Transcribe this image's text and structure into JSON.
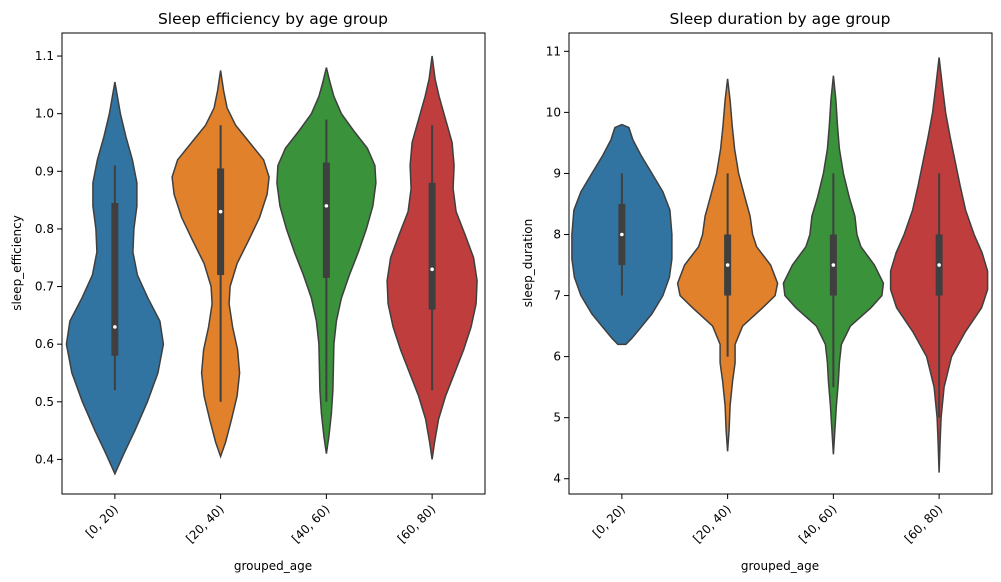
{
  "chart_data": [
    {
      "type": "violin",
      "title": "Sleep efficiency by age group",
      "xlabel": "grouped_age",
      "ylabel": "sleep_efficiency",
      "ylim": [
        0.34,
        1.14
      ],
      "yticks": [
        0.4,
        0.5,
        0.6,
        0.7,
        0.8,
        0.9,
        1.0,
        1.1
      ],
      "ytick_labels": [
        "0.4",
        "0.5",
        "0.6",
        "0.7",
        "0.8",
        "0.9",
        "1.0",
        "1.1"
      ],
      "categories": [
        "[0, 20)",
        "[20, 40)",
        "[40, 60)",
        "[60, 80)"
      ],
      "colors": [
        "#3274a1",
        "#e1812c",
        "#3a923a",
        "#c03d3e"
      ],
      "series": [
        {
          "category": "[0, 20)",
          "min": 0.52,
          "q1": 0.58,
          "median": 0.63,
          "q3": 0.845,
          "max": 0.91,
          "kde_lo": 0.375,
          "kde_hi": 1.055,
          "density": [
            [
              0.375,
              0.0
            ],
            [
              0.41,
              0.18
            ],
            [
              0.45,
              0.4
            ],
            [
              0.5,
              0.65
            ],
            [
              0.55,
              0.86
            ],
            [
              0.6,
              0.97
            ],
            [
              0.64,
              0.9
            ],
            [
              0.68,
              0.66
            ],
            [
              0.72,
              0.45
            ],
            [
              0.76,
              0.36
            ],
            [
              0.8,
              0.38
            ],
            [
              0.84,
              0.44
            ],
            [
              0.88,
              0.44
            ],
            [
              0.92,
              0.35
            ],
            [
              0.96,
              0.22
            ],
            [
              1.0,
              0.11
            ],
            [
              1.03,
              0.05
            ],
            [
              1.055,
              0.0
            ]
          ]
        },
        {
          "category": "[20, 40)",
          "min": 0.5,
          "q1": 0.72,
          "median": 0.83,
          "q3": 0.905,
          "max": 0.98,
          "kde_lo": 0.405,
          "kde_hi": 1.075,
          "density": [
            [
              0.405,
              0.0
            ],
            [
              0.43,
              0.1
            ],
            [
              0.47,
              0.22
            ],
            [
              0.51,
              0.33
            ],
            [
              0.55,
              0.38
            ],
            [
              0.59,
              0.34
            ],
            [
              0.63,
              0.24
            ],
            [
              0.67,
              0.17
            ],
            [
              0.7,
              0.19
            ],
            [
              0.74,
              0.33
            ],
            [
              0.78,
              0.56
            ],
            [
              0.82,
              0.78
            ],
            [
              0.86,
              0.93
            ],
            [
              0.89,
              0.97
            ],
            [
              0.92,
              0.86
            ],
            [
              0.95,
              0.58
            ],
            [
              0.98,
              0.3
            ],
            [
              1.01,
              0.13
            ],
            [
              1.04,
              0.06
            ],
            [
              1.075,
              0.0
            ]
          ]
        },
        {
          "category": "[40, 60)",
          "min": 0.5,
          "q1": 0.715,
          "median": 0.84,
          "q3": 0.915,
          "max": 0.99,
          "kde_lo": 0.41,
          "kde_hi": 1.08,
          "density": [
            [
              0.41,
              0.0
            ],
            [
              0.44,
              0.05
            ],
            [
              0.48,
              0.1
            ],
            [
              0.52,
              0.13
            ],
            [
              0.56,
              0.14
            ],
            [
              0.6,
              0.15
            ],
            [
              0.64,
              0.2
            ],
            [
              0.68,
              0.3
            ],
            [
              0.72,
              0.46
            ],
            [
              0.76,
              0.64
            ],
            [
              0.8,
              0.8
            ],
            [
              0.84,
              0.93
            ],
            [
              0.88,
              0.99
            ],
            [
              0.91,
              0.97
            ],
            [
              0.94,
              0.82
            ],
            [
              0.97,
              0.55
            ],
            [
              1.0,
              0.3
            ],
            [
              1.03,
              0.15
            ],
            [
              1.055,
              0.07
            ],
            [
              1.08,
              0.0
            ]
          ]
        },
        {
          "category": "[60, 80)",
          "min": 0.52,
          "q1": 0.66,
          "median": 0.73,
          "q3": 0.88,
          "max": 0.98,
          "kde_lo": 0.4,
          "kde_hi": 1.1,
          "density": [
            [
              0.4,
              0.0
            ],
            [
              0.43,
              0.05
            ],
            [
              0.47,
              0.13
            ],
            [
              0.51,
              0.27
            ],
            [
              0.55,
              0.45
            ],
            [
              0.59,
              0.63
            ],
            [
              0.63,
              0.78
            ],
            [
              0.67,
              0.88
            ],
            [
              0.71,
              0.9
            ],
            [
              0.75,
              0.83
            ],
            [
              0.79,
              0.66
            ],
            [
              0.83,
              0.48
            ],
            [
              0.87,
              0.42
            ],
            [
              0.91,
              0.44
            ],
            [
              0.95,
              0.4
            ],
            [
              0.99,
              0.27
            ],
            [
              1.03,
              0.14
            ],
            [
              1.06,
              0.06
            ],
            [
              1.1,
              0.0
            ]
          ]
        }
      ]
    },
    {
      "type": "violin",
      "title": "Sleep duration by age group",
      "xlabel": "grouped_age",
      "ylabel": "sleep_duration",
      "ylim": [
        3.75,
        11.3
      ],
      "yticks": [
        4,
        5,
        6,
        7,
        8,
        9,
        10,
        11
      ],
      "ytick_labels": [
        "4",
        "5",
        "6",
        "7",
        "8",
        "9",
        "10",
        "11"
      ],
      "categories": [
        "[0, 20)",
        "[20, 40)",
        "[40, 60)",
        "[60, 80)"
      ],
      "colors": [
        "#3274a1",
        "#e1812c",
        "#3a923a",
        "#c03d3e"
      ],
      "series": [
        {
          "category": "[0, 20)",
          "min": 7.0,
          "q1": 7.5,
          "median": 8.0,
          "q3": 8.5,
          "max": 9.0,
          "kde_lo": 6.2,
          "kde_hi": 9.8,
          "density": [
            [
              6.2,
              0.08
            ],
            [
              6.3,
              0.2
            ],
            [
              6.5,
              0.4
            ],
            [
              6.7,
              0.6
            ],
            [
              7.0,
              0.82
            ],
            [
              7.3,
              0.95
            ],
            [
              7.6,
              1.0
            ],
            [
              8.0,
              1.0
            ],
            [
              8.4,
              0.96
            ],
            [
              8.7,
              0.82
            ],
            [
              9.0,
              0.6
            ],
            [
              9.3,
              0.38
            ],
            [
              9.55,
              0.22
            ],
            [
              9.75,
              0.14
            ],
            [
              9.8,
              0.0
            ]
          ]
        },
        {
          "category": "[20, 40)",
          "min": 6.0,
          "q1": 7.0,
          "median": 7.5,
          "q3": 8.0,
          "max": 9.0,
          "kde_lo": 4.45,
          "kde_hi": 10.55,
          "density": [
            [
              4.45,
              0.0
            ],
            [
              4.8,
              0.03
            ],
            [
              5.2,
              0.05
            ],
            [
              5.6,
              0.1
            ],
            [
              5.9,
              0.15
            ],
            [
              6.2,
              0.15
            ],
            [
              6.5,
              0.3
            ],
            [
              6.8,
              0.7
            ],
            [
              7.0,
              0.95
            ],
            [
              7.2,
              1.0
            ],
            [
              7.5,
              0.86
            ],
            [
              7.8,
              0.58
            ],
            [
              8.0,
              0.5
            ],
            [
              8.3,
              0.45
            ],
            [
              8.6,
              0.35
            ],
            [
              9.0,
              0.22
            ],
            [
              9.4,
              0.14
            ],
            [
              9.8,
              0.09
            ],
            [
              10.2,
              0.05
            ],
            [
              10.55,
              0.0
            ]
          ]
        },
        {
          "category": "[40, 60)",
          "min": 5.5,
          "q1": 7.0,
          "median": 7.5,
          "q3": 8.0,
          "max": 9.0,
          "kde_lo": 4.4,
          "kde_hi": 10.6,
          "density": [
            [
              4.4,
              0.0
            ],
            [
              4.8,
              0.03
            ],
            [
              5.2,
              0.06
            ],
            [
              5.6,
              0.1
            ],
            [
              5.9,
              0.12
            ],
            [
              6.2,
              0.16
            ],
            [
              6.5,
              0.34
            ],
            [
              6.8,
              0.75
            ],
            [
              7.0,
              0.97
            ],
            [
              7.2,
              1.0
            ],
            [
              7.5,
              0.82
            ],
            [
              7.8,
              0.55
            ],
            [
              8.0,
              0.47
            ],
            [
              8.3,
              0.43
            ],
            [
              8.6,
              0.32
            ],
            [
              9.0,
              0.2
            ],
            [
              9.4,
              0.12
            ],
            [
              9.8,
              0.08
            ],
            [
              10.2,
              0.05
            ],
            [
              10.6,
              0.0
            ]
          ]
        },
        {
          "category": "[60, 80)",
          "min": 5.0,
          "q1": 7.0,
          "median": 7.5,
          "q3": 8.0,
          "max": 9.0,
          "kde_lo": 4.1,
          "kde_hi": 10.9,
          "density": [
            [
              4.1,
              0.0
            ],
            [
              4.6,
              0.02
            ],
            [
              5.0,
              0.04
            ],
            [
              5.5,
              0.1
            ],
            [
              6.0,
              0.25
            ],
            [
              6.4,
              0.52
            ],
            [
              6.8,
              0.85
            ],
            [
              7.1,
              0.97
            ],
            [
              7.4,
              0.97
            ],
            [
              7.7,
              0.86
            ],
            [
              8.0,
              0.7
            ],
            [
              8.4,
              0.53
            ],
            [
              8.8,
              0.42
            ],
            [
              9.2,
              0.32
            ],
            [
              9.6,
              0.22
            ],
            [
              10.0,
              0.13
            ],
            [
              10.4,
              0.07
            ],
            [
              10.9,
              0.0
            ]
          ]
        }
      ]
    }
  ]
}
